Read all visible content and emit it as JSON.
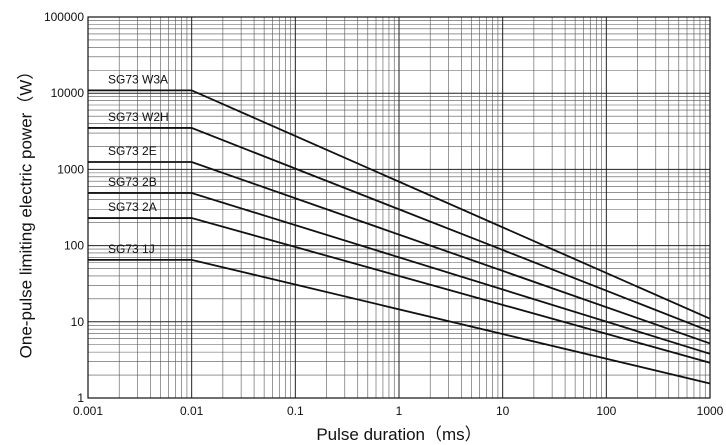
{
  "chart_data": {
    "type": "line",
    "xlabel": "Pulse duration（ms）",
    "ylabel": "One-pulse limiting electric power（W）",
    "x_scale": "log",
    "y_scale": "log",
    "xlim": [
      0.001,
      1000
    ],
    "ylim": [
      1,
      100000
    ],
    "grid": true,
    "x_ticks": [
      "0.001",
      "0.01",
      "0.1",
      "1",
      "10",
      "100",
      "1000"
    ],
    "y_ticks": [
      "1",
      "10",
      "100",
      "1000",
      "10000",
      "100000"
    ],
    "series": [
      {
        "name": "SG73 W3A",
        "x": [
          0.001,
          0.01,
          1000
        ],
        "y": [
          10900,
          10900,
          11
        ]
      },
      {
        "name": "SG73 W2H",
        "x": [
          0.001,
          0.01,
          1000
        ],
        "y": [
          3500,
          3500,
          7.5
        ]
      },
      {
        "name": "SG73 2E",
        "x": [
          0.001,
          0.01,
          1000
        ],
        "y": [
          1250,
          1250,
          5.2
        ]
      },
      {
        "name": "SG73 2B",
        "x": [
          0.001,
          0.01,
          1000
        ],
        "y": [
          490,
          490,
          3.8
        ]
      },
      {
        "name": "SG73 2A",
        "x": [
          0.001,
          0.01,
          1000
        ],
        "y": [
          230,
          230,
          2.9
        ]
      },
      {
        "name": "SG73 1J",
        "x": [
          0.001,
          0.01,
          1000
        ],
        "y": [
          65,
          65,
          1.55
        ]
      }
    ]
  }
}
